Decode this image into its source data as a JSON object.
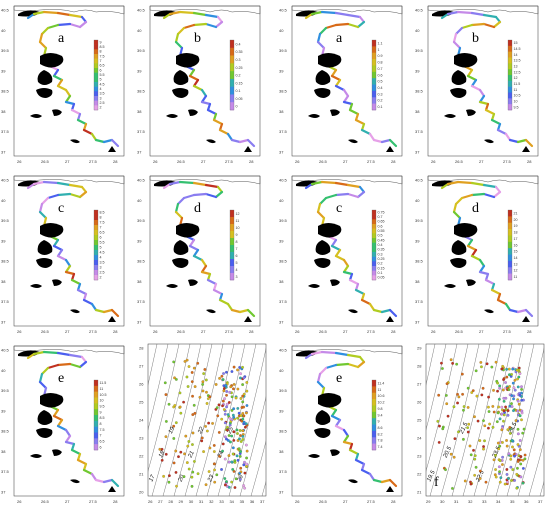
{
  "figure": {
    "panels": [
      {
        "id": "p1",
        "label": "a",
        "type": "map",
        "xticks": [
          "26",
          "26.5",
          "27",
          "27.5",
          "28"
        ],
        "yticks": [
          "40.5",
          "40",
          "39.5",
          "39",
          "38.5",
          "38",
          "37.5",
          "37"
        ],
        "colorbar": [
          "9",
          "8.5",
          "8",
          "7.5",
          "7",
          "6.5",
          "6",
          "5.5",
          "5",
          "4.5",
          "4",
          "3.5",
          "3",
          "2.5",
          "2"
        ]
      },
      {
        "id": "p2",
        "label": "b",
        "type": "map",
        "xticks": [
          "26",
          "26.5",
          "27",
          "27.5",
          "28"
        ],
        "yticks": [
          "40.5",
          "40",
          "39.5",
          "39",
          "38.5",
          "38",
          "37.5",
          "37"
        ],
        "colorbar": [
          "0.4",
          "0.35",
          "0.3",
          "0.25",
          "0.2",
          "0.15",
          "0.1",
          "0.05",
          "0"
        ]
      },
      {
        "id": "p3",
        "label": "a",
        "type": "map",
        "xticks": [
          "26",
          "26.5",
          "27",
          "27.5",
          "28"
        ],
        "yticks": [
          "40.5",
          "40",
          "39.5",
          "39",
          "38.5",
          "38",
          "37.5",
          "37"
        ],
        "colorbar": [
          "1.1",
          "1",
          "0.9",
          "0.8",
          "0.7",
          "0.6",
          "0.5",
          "0.4",
          "0.3",
          "0.2",
          "0.1"
        ]
      },
      {
        "id": "p4",
        "label": "b",
        "type": "map",
        "xticks": [
          "26",
          "26.5",
          "27",
          "27.5",
          "28"
        ],
        "yticks": [
          "40.5",
          "40",
          "39.5",
          "39",
          "38.5",
          "38",
          "37.5",
          "37"
        ],
        "colorbar": [
          "15",
          "14.5",
          "14",
          "13.5",
          "13",
          "12.5",
          "12",
          "11.5",
          "11",
          "10.5",
          "10",
          "9.5"
        ]
      },
      {
        "id": "p5",
        "label": "c",
        "type": "map",
        "xticks": [
          "26",
          "26.5",
          "27",
          "27.5",
          "28"
        ],
        "yticks": [
          "40.5",
          "40",
          "39.5",
          "39",
          "38.5",
          "38",
          "37.5",
          "37"
        ],
        "colorbar": [
          "8.5",
          "8",
          "7.5",
          "7",
          "6.5",
          "6",
          "5.5",
          "5",
          "4.5",
          "4",
          "3.5",
          "3",
          "2.5",
          "2"
        ]
      },
      {
        "id": "p6",
        "label": "d",
        "type": "map",
        "xticks": [
          "26",
          "26.5",
          "27",
          "27.5",
          "28"
        ],
        "yticks": [
          "40.5",
          "40",
          "39.5",
          "39",
          "38.5",
          "38",
          "37.5",
          "37"
        ],
        "colorbar": [
          "12",
          "11",
          "10",
          "9",
          "8",
          "7",
          "6",
          "5",
          "4",
          "3"
        ]
      },
      {
        "id": "p7",
        "label": "c",
        "type": "map",
        "xticks": [
          "26",
          "26.5",
          "27",
          "27.5",
          "28"
        ],
        "yticks": [
          "40.5",
          "40",
          "39.5",
          "39",
          "38.5",
          "38",
          "37.5",
          "37"
        ],
        "colorbar": [
          "0.75",
          "0.7",
          "0.65",
          "0.6",
          "0.55",
          "0.5",
          "0.45",
          "0.4",
          "0.35",
          "0.3",
          "0.25",
          "0.2",
          "0.15",
          "0.1",
          "0.05"
        ]
      },
      {
        "id": "p8",
        "label": "d",
        "type": "map",
        "xticks": [
          "26",
          "26.5",
          "27",
          "27.5",
          "28"
        ],
        "yticks": [
          "40.5",
          "40",
          "39.5",
          "39",
          "38.5",
          "38",
          "37.5",
          "37"
        ],
        "colorbar": [
          "21",
          "20",
          "19",
          "18",
          "17",
          "16",
          "15",
          "14",
          "13",
          "12",
          "11"
        ]
      },
      {
        "id": "p9",
        "label": "e",
        "type": "map",
        "xticks": [
          "26",
          "26.5",
          "27",
          "27.5",
          "28"
        ],
        "yticks": [
          "40.5",
          "40",
          "39.5",
          "39",
          "38.5",
          "38",
          "37.5",
          "37"
        ],
        "colorbar": [
          "11.5",
          "11",
          "10.5",
          "10",
          "9.5",
          "9",
          "8.5",
          "8",
          "7.5",
          "7",
          "6.5",
          "6"
        ]
      },
      {
        "id": "p10",
        "label": "",
        "type": "contour",
        "xticks": [
          "26",
          "27",
          "28",
          "29",
          "30",
          "31",
          "32",
          "33",
          "34",
          "35",
          "36",
          "37"
        ],
        "yticks": [
          "28",
          "27",
          "26",
          "25",
          "24",
          "23",
          "22",
          "21",
          "20"
        ],
        "contour_labels": [
          "17",
          "18",
          "19",
          "20",
          "21",
          "22",
          "23",
          "24",
          "25",
          "26"
        ]
      },
      {
        "id": "p11",
        "label": "e",
        "type": "map",
        "xticks": [
          "26",
          "26.5",
          "27",
          "27.5",
          "28"
        ],
        "yticks": [
          "40.5",
          "40",
          "39.5",
          "39",
          "38.5",
          "38",
          "37.5",
          "37"
        ],
        "colorbar": [
          "11.4",
          "11",
          "10.6",
          "10.2",
          "9.8",
          "9.4",
          "9",
          "8.6",
          "8.2",
          "7.8",
          "7.4"
        ]
      },
      {
        "id": "p12",
        "label": "f",
        "type": "contour",
        "xticks": [
          "29",
          "30",
          "31",
          "32",
          "33",
          "34",
          "35",
          "36",
          "37"
        ],
        "yticks": [
          "29",
          "28",
          "27",
          "26",
          "25",
          "24",
          "23",
          "22",
          "21"
        ],
        "contour_labels": [
          "19.5",
          "20.5",
          "21.5",
          "22.5",
          "23.5",
          "24.5"
        ]
      }
    ]
  },
  "colors": {
    "ramp": [
      "#e6a0e8",
      "#c58ae8",
      "#8a7df0",
      "#4a5ff0",
      "#2f8fe0",
      "#30b0b0",
      "#34c070",
      "#70c830",
      "#b0cc20",
      "#d6c020",
      "#e0a020",
      "#d86a18",
      "#c03020"
    ],
    "land": "#000000",
    "coast": "#555555"
  }
}
